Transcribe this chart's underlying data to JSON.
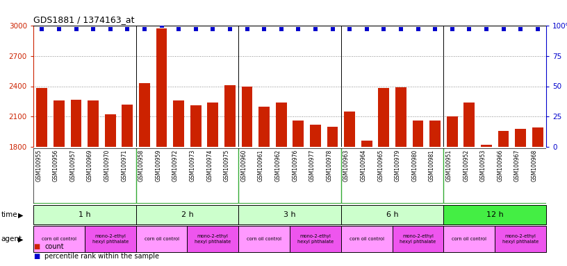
{
  "title": "GDS1881 / 1374163_at",
  "samples": [
    "GSM100955",
    "GSM100956",
    "GSM100957",
    "GSM100969",
    "GSM100970",
    "GSM100971",
    "GSM100958",
    "GSM100959",
    "GSM100972",
    "GSM100973",
    "GSM100974",
    "GSM100975",
    "GSM100960",
    "GSM100961",
    "GSM100962",
    "GSM100976",
    "GSM100977",
    "GSM100978",
    "GSM100963",
    "GSM100964",
    "GSM100965",
    "GSM100979",
    "GSM100980",
    "GSM100981",
    "GSM100951",
    "GSM100952",
    "GSM100953",
    "GSM100966",
    "GSM100967",
    "GSM100968"
  ],
  "counts": [
    2380,
    2260,
    2265,
    2260,
    2120,
    2215,
    2430,
    2975,
    2260,
    2210,
    2240,
    2410,
    2400,
    2200,
    2240,
    2060,
    2020,
    2000,
    2150,
    1860,
    2380,
    2390,
    2060,
    2060,
    2100,
    2240,
    1820,
    1960,
    1980,
    1990
  ],
  "percentile_ranks": [
    97,
    97,
    97,
    97,
    97,
    97,
    97,
    100,
    97,
    97,
    97,
    97,
    97,
    97,
    97,
    97,
    97,
    97,
    97,
    97,
    97,
    97,
    97,
    97,
    97,
    97,
    97,
    97,
    97,
    97
  ],
  "ymin": 1800,
  "ymax": 3000,
  "yticks": [
    1800,
    2100,
    2400,
    2700,
    3000
  ],
  "bar_color": "#cc2200",
  "dot_color": "#0000cc",
  "bar_width": 0.65,
  "time_groups": [
    {
      "label": "1 h",
      "start": 0,
      "end": 6,
      "color": "#ccffcc"
    },
    {
      "label": "2 h",
      "start": 6,
      "end": 12,
      "color": "#ccffcc"
    },
    {
      "label": "3 h",
      "start": 12,
      "end": 18,
      "color": "#ccffcc"
    },
    {
      "label": "6 h",
      "start": 18,
      "end": 24,
      "color": "#ccffcc"
    },
    {
      "label": "12 h",
      "start": 24,
      "end": 30,
      "color": "#44ee44"
    }
  ],
  "agent_groups": [
    {
      "label": "corn oil control",
      "start": 0,
      "end": 3,
      "color": "#ff99ff"
    },
    {
      "label": "mono-2-ethyl\nhexyl phthalate",
      "start": 3,
      "end": 6,
      "color": "#ee55ee"
    },
    {
      "label": "corn oil control",
      "start": 6,
      "end": 9,
      "color": "#ff99ff"
    },
    {
      "label": "mono-2-ethyl\nhexyl phthalate",
      "start": 9,
      "end": 12,
      "color": "#ee55ee"
    },
    {
      "label": "corn oil control",
      "start": 12,
      "end": 15,
      "color": "#ff99ff"
    },
    {
      "label": "mono-2-ethyl\nhexyl phthalate",
      "start": 15,
      "end": 18,
      "color": "#ee55ee"
    },
    {
      "label": "corn oil control",
      "start": 18,
      "end": 21,
      "color": "#ff99ff"
    },
    {
      "label": "mono-2-ethyl\nhexyl phthalate",
      "start": 21,
      "end": 24,
      "color": "#ee55ee"
    },
    {
      "label": "corn oil control",
      "start": 24,
      "end": 27,
      "color": "#ff99ff"
    },
    {
      "label": "mono-2-ethyl\nhexyl phthalate",
      "start": 27,
      "end": 30,
      "color": "#ee55ee"
    }
  ],
  "right_yticks": [
    0,
    25,
    50,
    75,
    100
  ],
  "right_yticklabels": [
    "0",
    "25",
    "50",
    "75",
    "100%"
  ],
  "bg_color": "#ffffff",
  "grid_color": "#888888",
  "xtick_bg": "#e8e8e8",
  "group_sep_color": "#33aa33",
  "n": 30
}
